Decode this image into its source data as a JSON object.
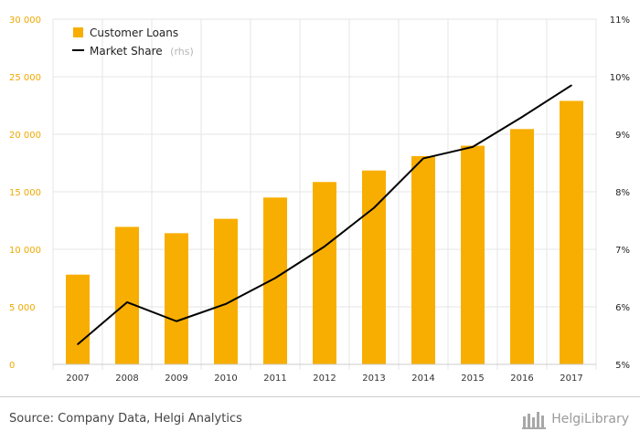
{
  "chart_data": {
    "type": "bar+line",
    "categories": [
      "2007",
      "2008",
      "2009",
      "2010",
      "2011",
      "2012",
      "2013",
      "2014",
      "2015",
      "2016",
      "2017"
    ],
    "series": [
      {
        "name": "Customer Loans",
        "axis": "left",
        "kind": "bar",
        "color": "#f8ae00",
        "values": [
          7800,
          11950,
          11400,
          12650,
          14500,
          15850,
          16850,
          18100,
          19000,
          20450,
          22900
        ]
      },
      {
        "name": "Market Share",
        "axis": "right",
        "kind": "line",
        "color": "#000000",
        "values": [
          5.35,
          6.08,
          5.75,
          6.05,
          6.5,
          7.05,
          7.72,
          8.58,
          8.78,
          9.3,
          9.85
        ]
      }
    ],
    "legend": [
      {
        "label": "Customer Loans",
        "note": ""
      },
      {
        "label": "Market Share",
        "note": "(rhs)"
      }
    ],
    "y_left": {
      "ylim": [
        0,
        30000
      ],
      "ticks": [
        0,
        5000,
        10000,
        15000,
        20000,
        25000,
        30000
      ],
      "tick_labels": [
        "0",
        "5 000",
        "10 000",
        "15 000",
        "20 000",
        "25 000",
        "30 000"
      ],
      "color": "#f0a800"
    },
    "y_right": {
      "ylim": [
        5,
        11
      ],
      "ticks": [
        5,
        6,
        7,
        8,
        9,
        10,
        11
      ],
      "tick_labels": [
        "5%",
        "6%",
        "7%",
        "8%",
        "9%",
        "10%",
        "11%"
      ]
    },
    "grid": true,
    "legend_position": "top-left"
  },
  "footer": {
    "source": "Source: Company Data, Helgi Analytics",
    "brand": "HelgiLibrary"
  }
}
